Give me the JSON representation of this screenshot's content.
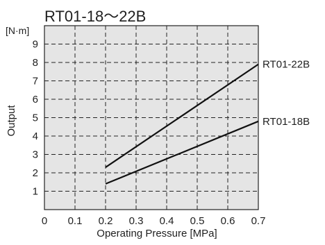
{
  "chart_data": {
    "type": "line",
    "title": "RT01-18～22B",
    "xlabel": "Operating Pressure [MPa]",
    "ylabel": "Output",
    "yunit": "[N·m]",
    "xlim": [
      0,
      0.7
    ],
    "ylim": [
      0,
      10
    ],
    "x_ticks": [
      "0",
      "0.1",
      "0.2",
      "0.3",
      "0.4",
      "0.5",
      "0.6",
      "0.7"
    ],
    "y_ticks": [
      "1",
      "2",
      "3",
      "4",
      "5",
      "6",
      "7",
      "8",
      "9"
    ],
    "grid": true,
    "series": [
      {
        "name": "RT01-22B",
        "x": [
          0.2,
          0.7
        ],
        "y": [
          2.3,
          7.9
        ]
      },
      {
        "name": "RT01-18B",
        "x": [
          0.2,
          0.7
        ],
        "y": [
          1.4,
          4.8
        ]
      }
    ],
    "colors": {
      "plot_background": "#e5e5e5",
      "grid": "#222222",
      "line": "#111111",
      "text": "#1f1f1f"
    }
  }
}
